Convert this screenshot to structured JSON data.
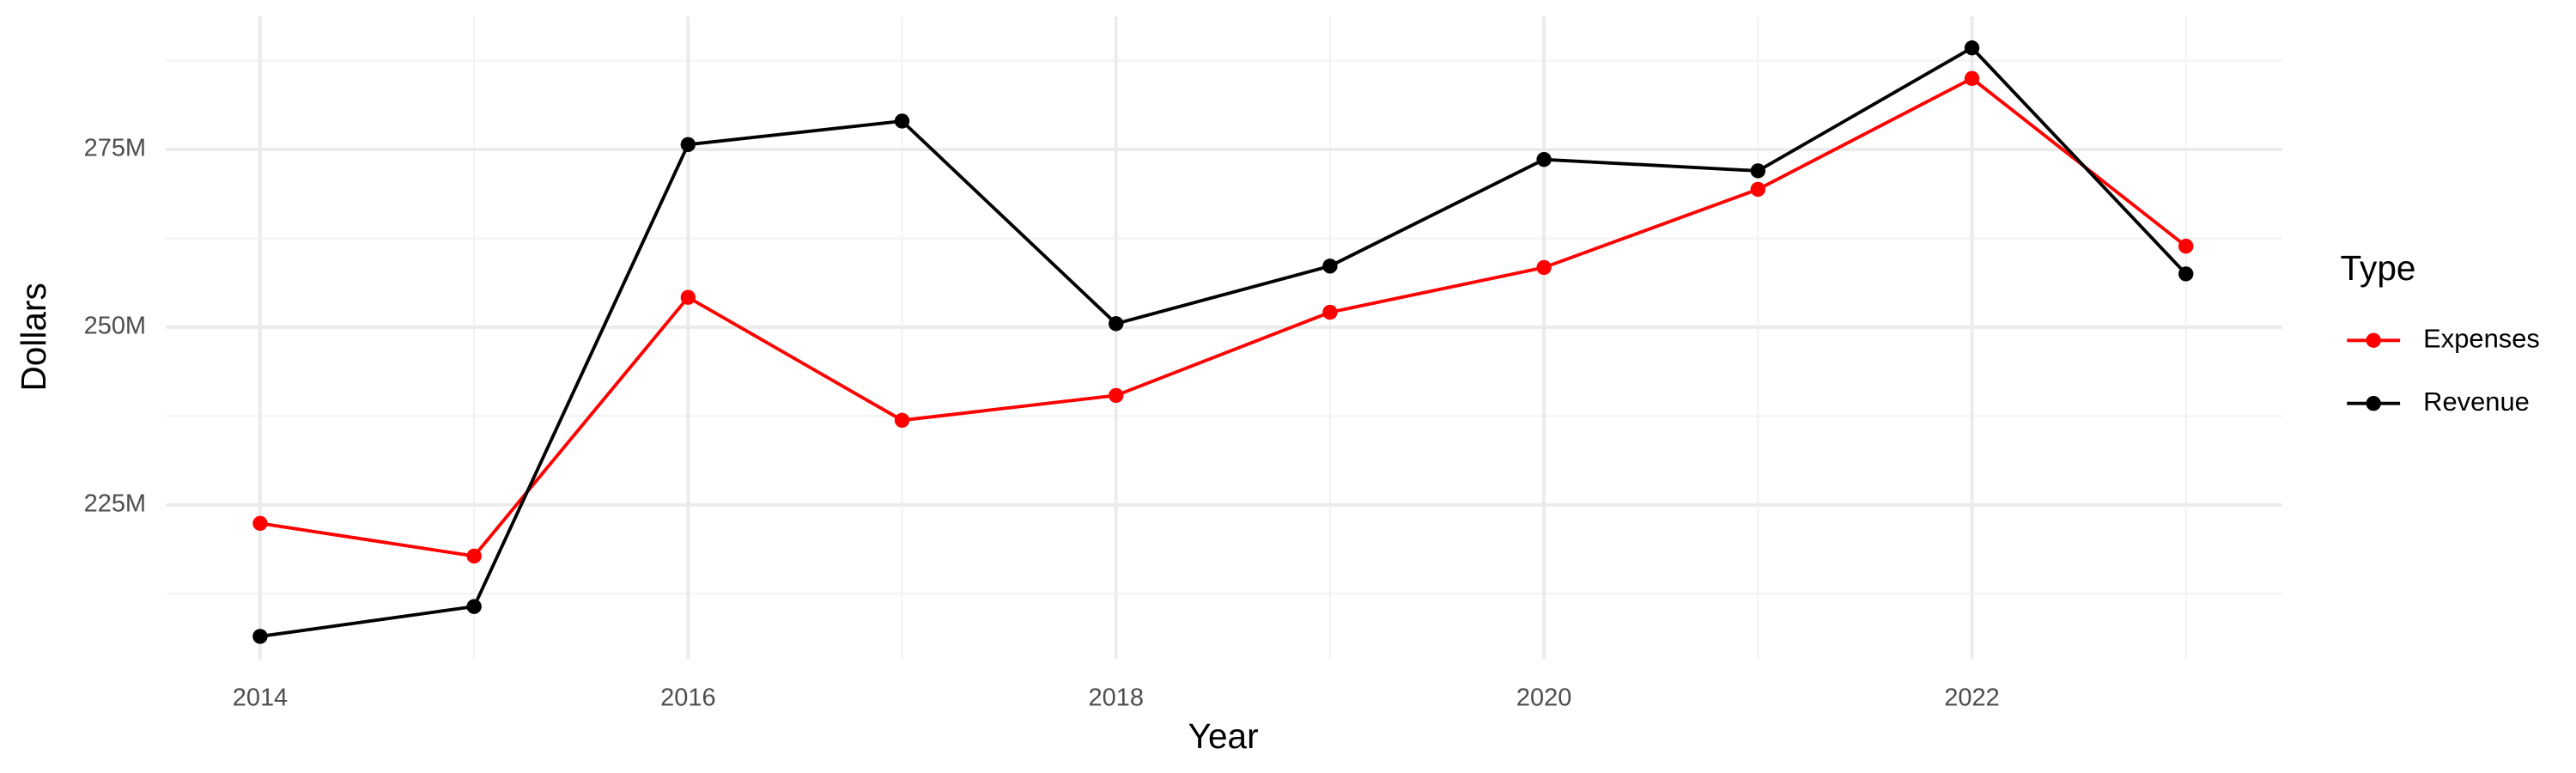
{
  "chart_data": {
    "type": "line",
    "x_label": "Year",
    "y_label": "Dollars",
    "legend_title": "Type",
    "legend": "right",
    "grid": true,
    "x": [
      2014,
      2015,
      2016,
      2017,
      2018,
      2019,
      2020,
      2021,
      2022,
      2023
    ],
    "series": [
      {
        "name": "Expenses",
        "color": "#ff0000",
        "values": [
          222400000,
          217800000,
          254200000,
          236900000,
          240400000,
          252100000,
          258400000,
          269400000,
          285000000,
          261400000
        ]
      },
      {
        "name": "Revenue",
        "color": "#000000",
        "values": [
          206500000,
          210700000,
          275700000,
          279000000,
          250500000,
          258600000,
          273600000,
          272000000,
          289300000,
          257500000
        ]
      }
    ],
    "xlim": [
      2013.56,
      2023.45
    ],
    "xticks": [
      2014,
      2016,
      2018,
      2020,
      2022
    ],
    "ylim": [
      203300000,
      293700000
    ],
    "yticks": [
      {
        "value": 225000000,
        "label": "225M"
      },
      {
        "value": 250000000,
        "label": "250M"
      },
      {
        "value": 275000000,
        "label": "275M"
      }
    ]
  }
}
